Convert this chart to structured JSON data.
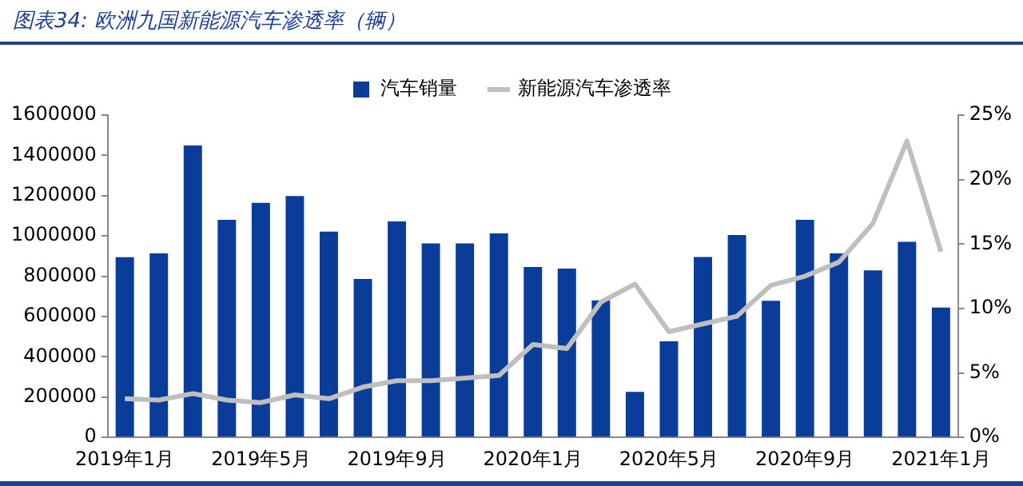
{
  "chart_data": {
    "type": "bar",
    "title": "图表34:  欧洲九国新能源汽车渗透率（辆）",
    "categories": [
      "2019年1月",
      null,
      null,
      null,
      "2019年5月",
      null,
      null,
      null,
      "2019年9月",
      null,
      null,
      null,
      "2020年1月",
      null,
      null,
      null,
      "2020年5月",
      null,
      null,
      null,
      "2020年9月",
      null,
      null,
      null,
      "2021年1月"
    ],
    "series": [
      {
        "name": "汽车销量",
        "color": "#0a3d99",
        "values": [
          895000,
          913000,
          1449000,
          1080000,
          1164000,
          1198000,
          1022000,
          787000,
          1072000,
          963000,
          963000,
          1013000,
          846000,
          838000,
          680000,
          226000,
          477000,
          896000,
          1005000,
          678000,
          1080000,
          913000,
          829000,
          971000,
          645000
        ]
      },
      {
        "name": "新能源汽车渗透率",
        "type": "line",
        "axis": "y2",
        "color": "#bfbfbf",
        "values": [
          3.0,
          2.9,
          3.4,
          2.9,
          2.7,
          3.3,
          3.0,
          3.9,
          4.4,
          4.4,
          4.6,
          4.8,
          7.2,
          6.9,
          10.5,
          11.9,
          8.2,
          8.8,
          9.4,
          11.8,
          12.5,
          13.6,
          16.6,
          23.0,
          14.4
        ]
      }
    ],
    "ylim": [
      0,
      1600000
    ],
    "yticks": [
      0,
      200000,
      400000,
      600000,
      800000,
      1000000,
      1200000,
      1400000,
      1600000
    ],
    "y2lim": [
      0,
      25
    ],
    "y2ticks": [
      {
        "value": 0,
        "label": "0%"
      },
      {
        "value": 5,
        "label": "5%"
      },
      {
        "value": 10,
        "label": "10%"
      },
      {
        "value": 15,
        "label": "15%"
      },
      {
        "value": 20,
        "label": "20%"
      },
      {
        "value": 25,
        "label": "25%"
      }
    ],
    "grid": false,
    "legend": "top",
    "marker": "none"
  }
}
